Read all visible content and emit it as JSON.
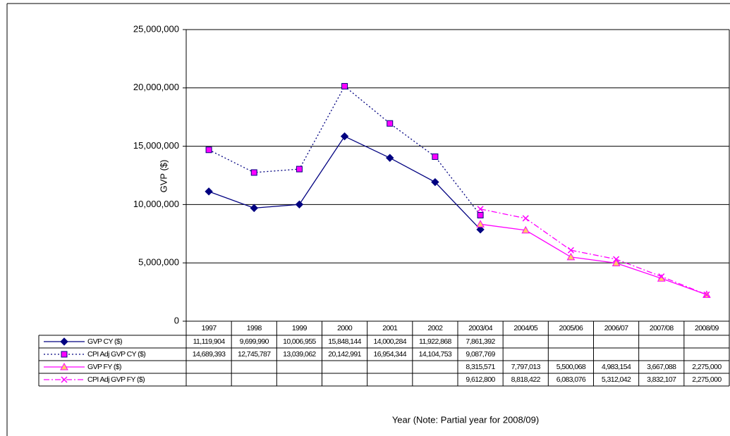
{
  "chart_data": {
    "type": "line",
    "y_label": "GVP ($)",
    "x_label": "Year (Note: Partial year for 2008/09)",
    "categories": [
      "1997",
      "1998",
      "1999",
      "2000",
      "2001",
      "2002",
      "2003/04",
      "2004/05",
      "2005/06",
      "2006/07",
      "2007/08",
      "2008/09"
    ],
    "ylim": [
      0,
      25000000
    ],
    "yticks": [
      0,
      {
        "value": 5000000,
        "label": "5,000,000"
      },
      {
        "value": 10000000,
        "label": "10,000,000"
      },
      {
        "value": 15000000,
        "label": "15,000,000"
      },
      {
        "value": 20000000,
        "label": "20,000,000"
      },
      {
        "value": 25000000,
        "label": "25,000,000"
      }
    ],
    "grid": true,
    "data_table": true,
    "series": [
      {
        "name": "GVP CY ($)",
        "color": "#000080",
        "marker": "diamond",
        "marker_fill": "#000080",
        "dash": "solid",
        "values": [
          11119904,
          9699990,
          10006955,
          15848144,
          14000284,
          11922868,
          7861392,
          null,
          null,
          null,
          null,
          null
        ],
        "value_labels": [
          "11,119,904",
          "9,699,990",
          "10,006,955",
          "15,848,144",
          "14,000,284",
          "11,922,868",
          "7,861,392",
          null,
          null,
          null,
          null,
          null
        ]
      },
      {
        "name": "CPI Adj GVP CY ($)",
        "color": "#000080",
        "marker": "square",
        "marker_fill": "#ff00ff",
        "dash": "dotted",
        "values": [
          14689393,
          12745787,
          13039062,
          20142991,
          16954344,
          14104753,
          9087769,
          null,
          null,
          null,
          null,
          null
        ],
        "value_labels": [
          "14,689,393",
          "12,745,787",
          "13,039,062",
          "20,142,991",
          "16,954,344",
          "14,104,753",
          "9,087,769",
          null,
          null,
          null,
          null,
          null
        ]
      },
      {
        "name": "GVP FY ($)",
        "color": "#ff00ff",
        "marker": "triangle",
        "marker_fill": "#ffcc66",
        "dash": "solid",
        "values": [
          null,
          null,
          null,
          null,
          null,
          null,
          8315571,
          7797013,
          5500068,
          4983154,
          3667088,
          2275000
        ],
        "value_labels": [
          null,
          null,
          null,
          null,
          null,
          null,
          "8,315,571",
          "7,797,013",
          "5,500,068",
          "4,983,154",
          "3,667,088",
          "2,275,000"
        ]
      },
      {
        "name": "CPI Adj GVP FY ($)",
        "color": "#ff00ff",
        "marker": "x",
        "marker_fill": "none",
        "dash": "dashdot",
        "values": [
          null,
          null,
          null,
          null,
          null,
          null,
          9612800,
          8818422,
          6083076,
          5312042,
          3832107,
          2275000
        ],
        "value_labels": [
          null,
          null,
          null,
          null,
          null,
          null,
          "9,612,800",
          "8,818,422",
          "6,083,076",
          "5,312,042",
          "3,832,107",
          "2,275,000"
        ]
      }
    ]
  }
}
